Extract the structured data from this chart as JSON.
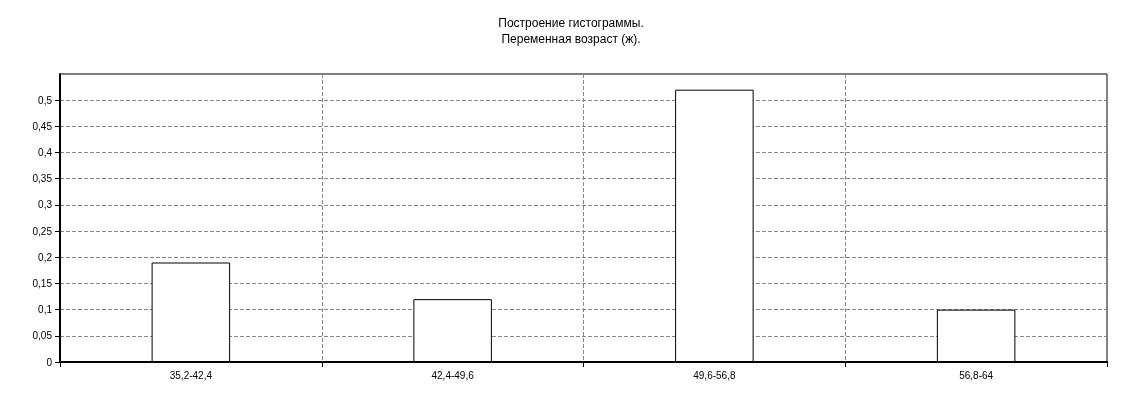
{
  "chart_data": {
    "type": "bar",
    "title": "Построение гистограммы.",
    "subtitle": "Переменная возраст (ж).",
    "categories": [
      "35,2-42,4",
      "42,4-49,6",
      "49,6-56,8",
      "56,8-64"
    ],
    "values": [
      0.19,
      0.12,
      0.52,
      0.1
    ],
    "color": "#ffffff",
    "ylim": [
      0,
      0.55
    ],
    "yticks": [
      0,
      {
        "value": 0.05,
        "label": "0,05"
      },
      {
        "value": 0.1,
        "label": "0,1"
      },
      {
        "value": 0.15,
        "label": "0,15"
      },
      {
        "value": 0.2,
        "label": "0,2"
      },
      {
        "value": 0.25,
        "label": "0,25"
      },
      {
        "value": 0.3,
        "label": "0,3"
      },
      {
        "value": 0.35,
        "label": "0,35"
      },
      {
        "value": 0.4,
        "label": "0,4"
      },
      {
        "value": 0.45,
        "label": "0,45"
      },
      {
        "value": 0.5,
        "label": "0,5"
      }
    ],
    "grid": true
  }
}
